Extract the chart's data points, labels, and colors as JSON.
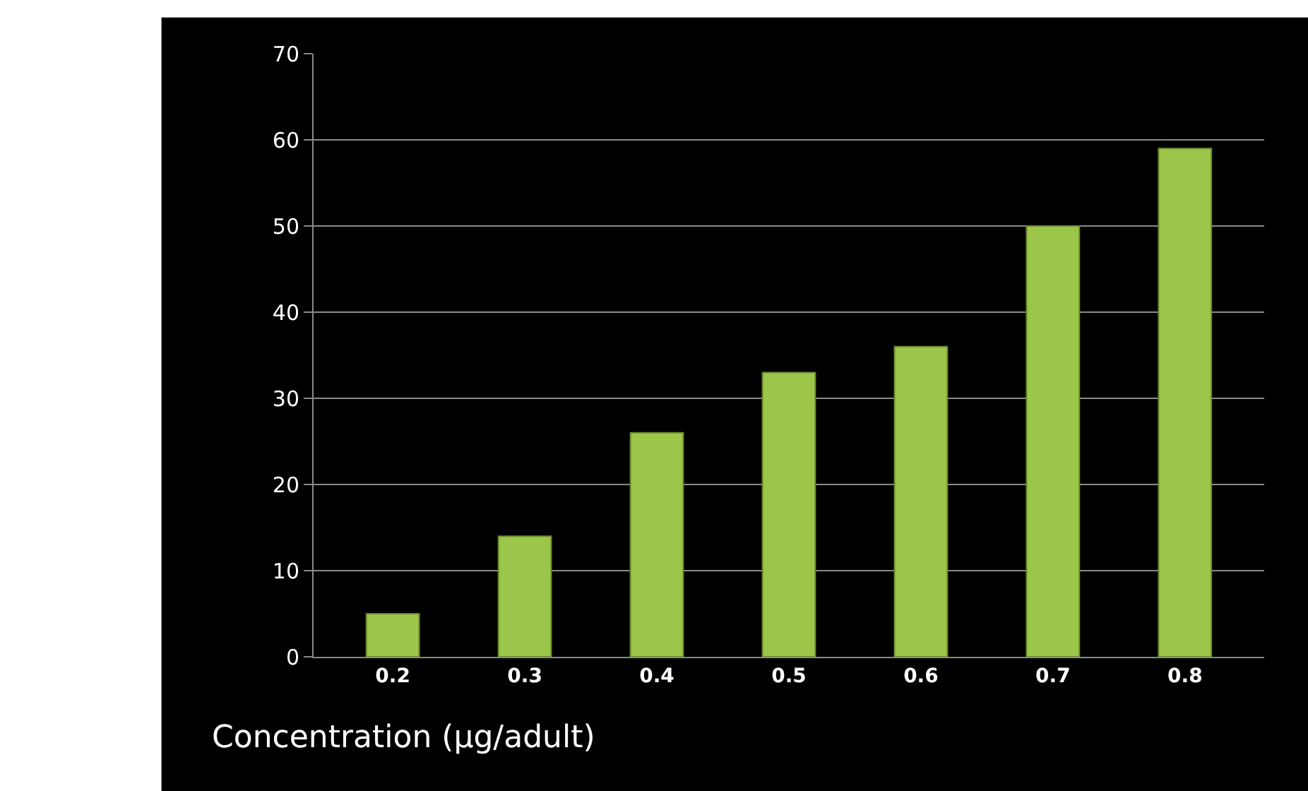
{
  "chart_data": {
    "type": "bar",
    "xlabel": "Concentration (µg/adult)",
    "categories": [
      "0.2",
      "0.3",
      "0.4",
      "0.5",
      "0.6",
      "0.7",
      "0.8"
    ],
    "values": [
      5,
      14,
      26,
      33,
      36,
      50,
      59
    ],
    "color": "#9bc64a",
    "ylim": [
      0,
      70
    ],
    "yticks": [
      0,
      10,
      20,
      30,
      40,
      50,
      60,
      70
    ],
    "grid": "y",
    "legend": false
  }
}
